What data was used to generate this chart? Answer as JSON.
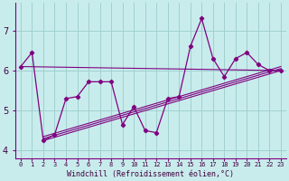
{
  "xlabel": "Windchill (Refroidissement éolien,°C)",
  "x_values": [
    0,
    1,
    2,
    3,
    4,
    5,
    6,
    7,
    8,
    9,
    10,
    11,
    12,
    13,
    14,
    15,
    16,
    17,
    18,
    19,
    20,
    21,
    22,
    23
  ],
  "y_values": [
    6.1,
    6.45,
    4.25,
    4.4,
    5.3,
    5.35,
    5.72,
    5.72,
    5.72,
    4.65,
    5.1,
    4.5,
    4.45,
    5.3,
    5.35,
    6.6,
    7.3,
    6.3,
    5.85,
    6.3,
    6.45,
    6.15,
    6.0,
    6.0
  ],
  "line_color": "#800080",
  "bg_color": "#c8ecec",
  "grid_color": "#a0d0d0",
  "ylim": [
    3.8,
    7.7
  ],
  "xlim": [
    -0.5,
    23.5
  ],
  "yticks": [
    4,
    5,
    6,
    7
  ],
  "xtick_labels": [
    "0",
    "1",
    "2",
    "3",
    "4",
    "5",
    "6",
    "7",
    "8",
    "9",
    "10",
    "11",
    "12",
    "13",
    "14",
    "15",
    "16",
    "17",
    "18",
    "19",
    "20",
    "21",
    "22",
    "23"
  ],
  "trend_lines": [
    [
      2,
      4.25,
      23,
      6.0
    ],
    [
      2,
      4.3,
      23,
      6.05
    ],
    [
      2,
      4.35,
      23,
      6.1
    ],
    [
      0,
      6.1,
      23,
      6.0
    ]
  ]
}
